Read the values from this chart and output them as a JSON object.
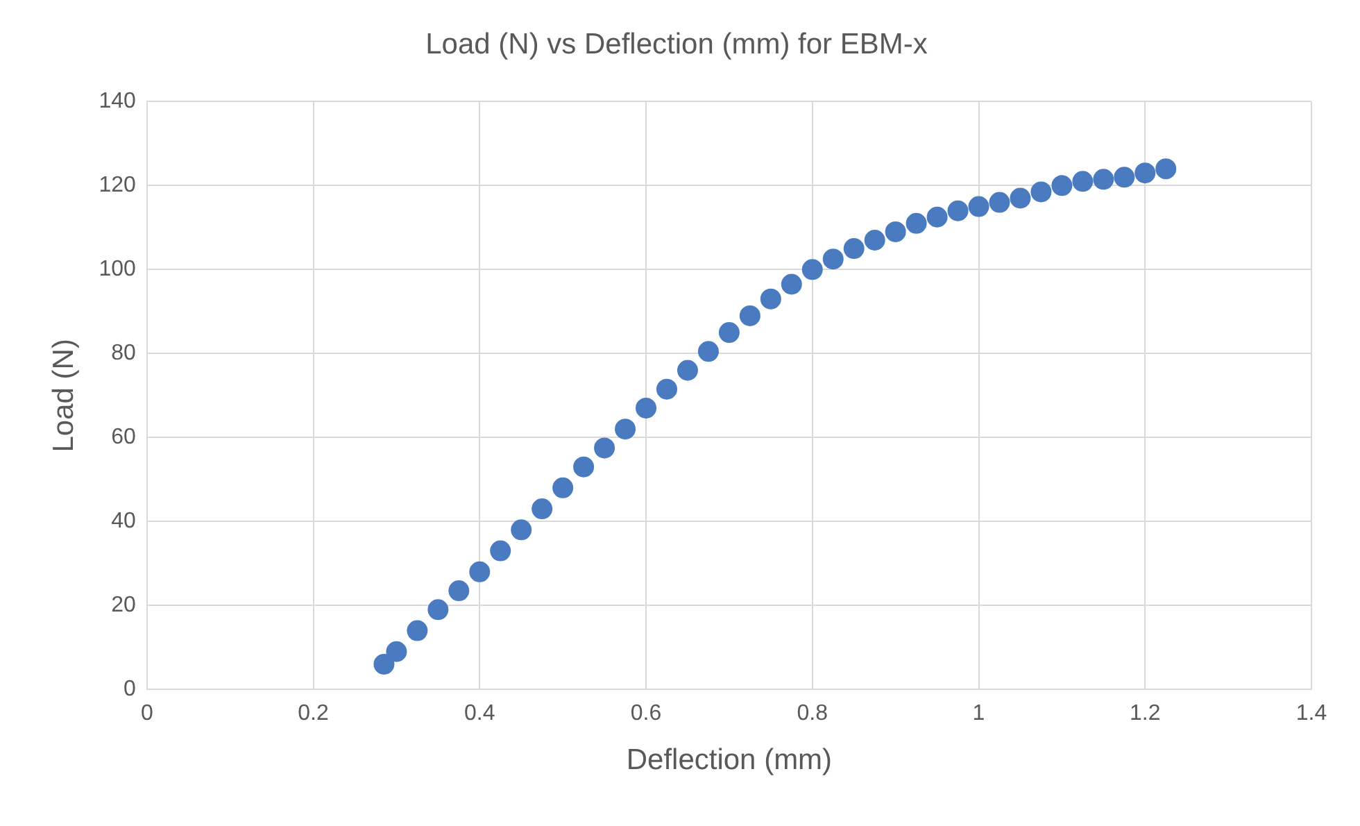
{
  "chart_data": {
    "type": "scatter",
    "title": "Load (N) vs Deflection (mm) for EBM-x",
    "xlabel": "Deflection (mm)",
    "ylabel": "Load (N)",
    "x": [
      0.285,
      0.3,
      0.325,
      0.35,
      0.375,
      0.4,
      0.425,
      0.45,
      0.475,
      0.5,
      0.525,
      0.55,
      0.575,
      0.6,
      0.625,
      0.65,
      0.675,
      0.7,
      0.725,
      0.75,
      0.775,
      0.8,
      0.825,
      0.85,
      0.875,
      0.9,
      0.925,
      0.95,
      0.975,
      1.0,
      1.025,
      1.05,
      1.075,
      1.1,
      1.125,
      1.15,
      1.175,
      1.2,
      1.225
    ],
    "series": [
      {
        "color": "#4a7bc0",
        "values": [
          6,
          9,
          14,
          19,
          23.5,
          28,
          33,
          38,
          43,
          48,
          53,
          57.5,
          62,
          67,
          71.5,
          76,
          80.5,
          85,
          89,
          93,
          96.5,
          100,
          102.5,
          105,
          107,
          109,
          111,
          112.5,
          114,
          115,
          116,
          117,
          118.5,
          120,
          121,
          121.5,
          122,
          123,
          124
        ]
      }
    ],
    "xlim": [
      0,
      1.4
    ],
    "xticks": [
      0,
      0.2,
      0.4,
      0.6,
      0.8,
      1,
      1.2,
      1.4
    ],
    "ylim": [
      0,
      140
    ],
    "yticks": [
      0,
      20,
      40,
      60,
      80,
      100,
      120,
      140
    ],
    "grid": true,
    "legend": false,
    "marker": "circle"
  }
}
